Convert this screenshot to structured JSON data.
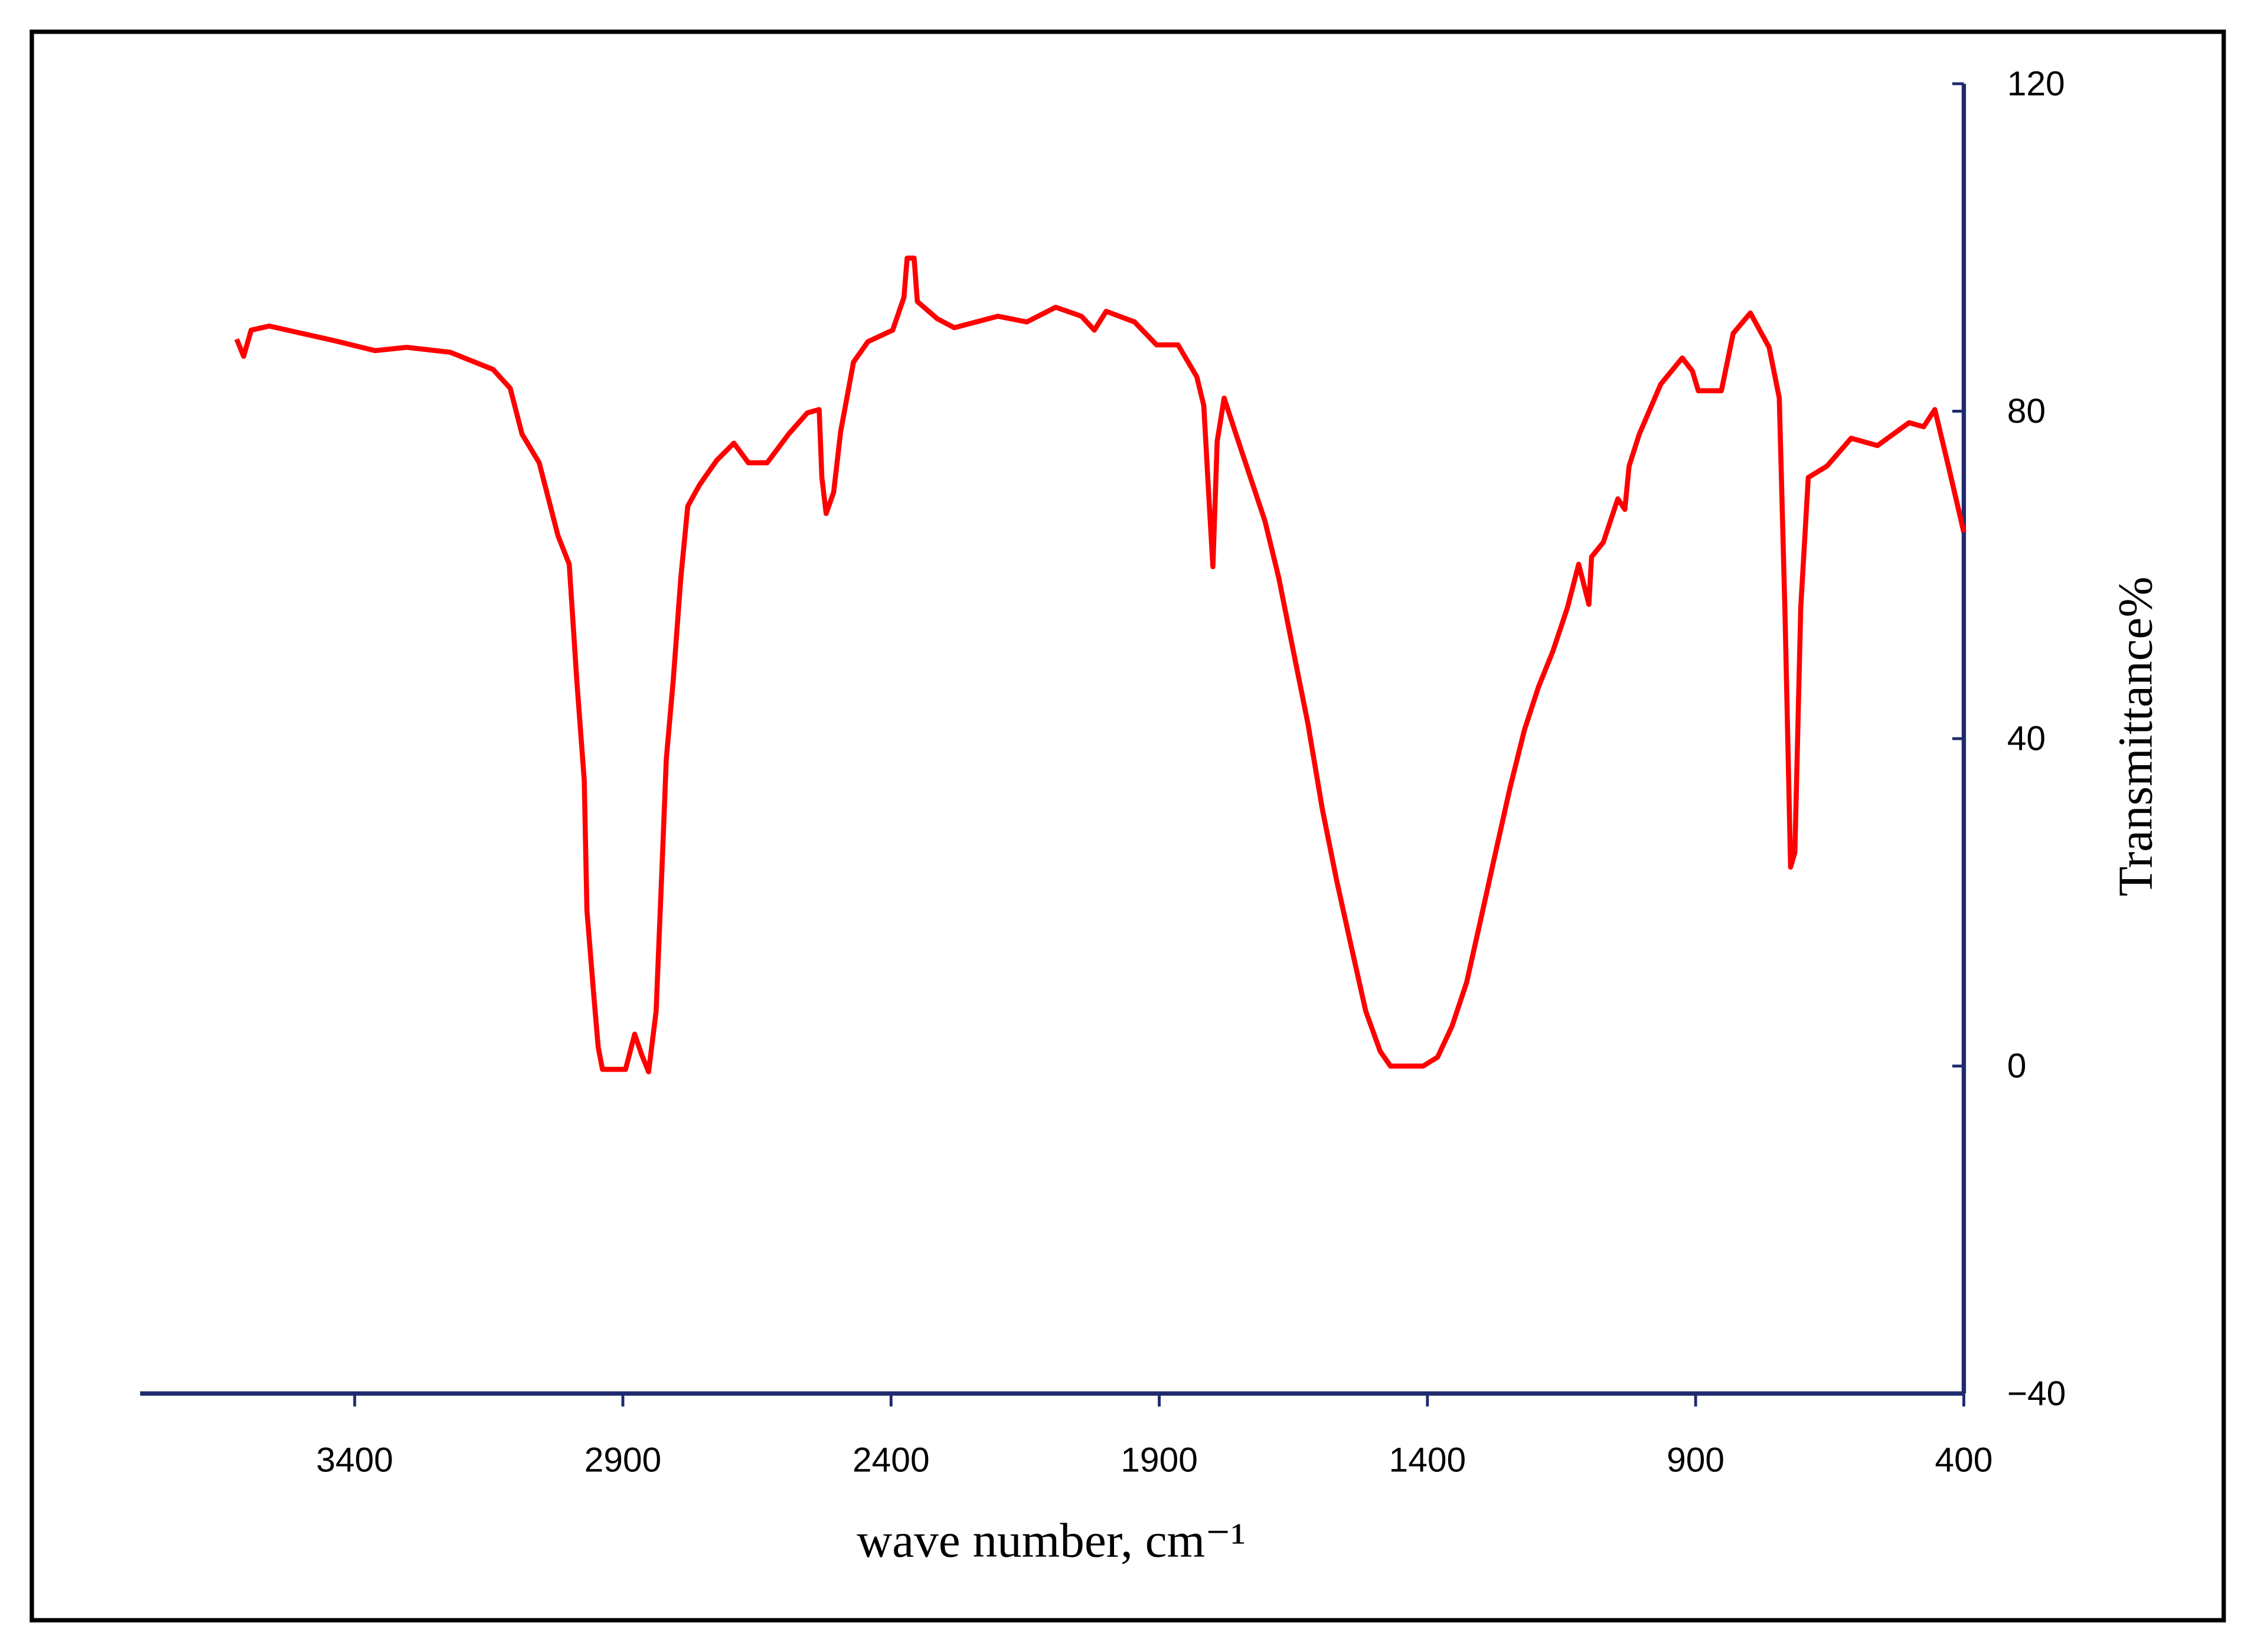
{
  "chart_data": {
    "type": "line",
    "xlabel": "wave number, cm⁻¹",
    "ylabel": "Transmittance%",
    "color": "#ff0000",
    "axis_color": "#1f2a6e",
    "xlim": [
      3800,
      400
    ],
    "ylim": [
      -40,
      120
    ],
    "xticks": [
      3400,
      2900,
      2400,
      1900,
      1400,
      900,
      400
    ],
    "yticks": [
      {
        "value": -40,
        "label": "−40"
      },
      0,
      40,
      80,
      120
    ],
    "y_axis_side": "right",
    "grid": false,
    "x": [
      3620,
      3607,
      3593,
      3559,
      3437,
      3362,
      3303,
      3222,
      3142,
      3110,
      3088,
      3056,
      3021,
      3000,
      2986,
      2972,
      2967,
      2954,
      2946,
      2938,
      2895,
      2878,
      2865,
      2852,
      2838,
      2827,
      2819,
      2806,
      2792,
      2779,
      2757,
      2725,
      2693,
      2666,
      2631,
      2591,
      2556,
      2534,
      2529,
      2521,
      2507,
      2494,
      2470,
      2443,
      2397,
      2376,
      2370,
      2357,
      2351,
      2314,
      2282,
      2201,
      2147,
      2093,
      2045,
      2021,
      1999,
      1946,
      1905,
      1865,
      1830,
      1817,
      1808,
      1800,
      1792,
      1779,
      1757,
      1730,
      1703,
      1677,
      1650,
      1623,
      1596,
      1569,
      1542,
      1515,
      1488,
      1469,
      1408,
      1381,
      1354,
      1327,
      1300,
      1273,
      1246,
      1219,
      1193,
      1166,
      1139,
      1118,
      1099,
      1094,
      1072,
      1045,
      1032,
      1024,
      1005,
      965,
      925,
      906,
      895,
      852,
      830,
      798,
      763,
      744,
      733,
      723,
      715,
      704,
      690,
      655,
      610,
      561,
      502,
      475,
      454,
      427,
      400
    ],
    "values": [
      88.8,
      86.7,
      89.9,
      90.4,
      88.6,
      87.4,
      87.8,
      87.2,
      85.1,
      82.8,
      77.2,
      73.7,
      64.8,
      61.3,
      47.2,
      34.9,
      19.0,
      8.5,
      2.3,
      -0.4,
      -0.4,
      3.9,
      1.4,
      -0.7,
      6.7,
      24.3,
      37.5,
      47.2,
      59.6,
      68.4,
      71.0,
      74.0,
      76.1,
      73.7,
      73.7,
      77.2,
      79.8,
      80.2,
      71.9,
      67.5,
      70.1,
      77.5,
      86.0,
      88.5,
      89.9,
      93.9,
      98.7,
      98.7,
      93.4,
      91.3,
      90.2,
      91.6,
      90.9,
      92.7,
      91.6,
      89.9,
      92.2,
      90.9,
      88.1,
      88.1,
      84.2,
      80.7,
      70.1,
      61.0,
      76.3,
      81.6,
      77.2,
      71.9,
      66.6,
      59.6,
      50.7,
      41.9,
      31.4,
      22.6,
      14.6,
      6.7,
      1.8,
      0,
      0,
      1.1,
      4.9,
      10.2,
      18.1,
      26.1,
      34.0,
      41.1,
      46.3,
      50.7,
      56.0,
      61.3,
      56.4,
      62.2,
      64.0,
      69.3,
      68.0,
      73.3,
      77.2,
      83.3,
      86.5,
      84.9,
      82.5,
      82.5,
      89.5,
      92.0,
      87.8,
      81.6,
      54.3,
      24.3,
      26.1,
      56.0,
      71.9,
      73.3,
      76.7,
      75.8,
      78.6,
      78.1,
      80.2,
      72.8,
      65.2
    ]
  }
}
